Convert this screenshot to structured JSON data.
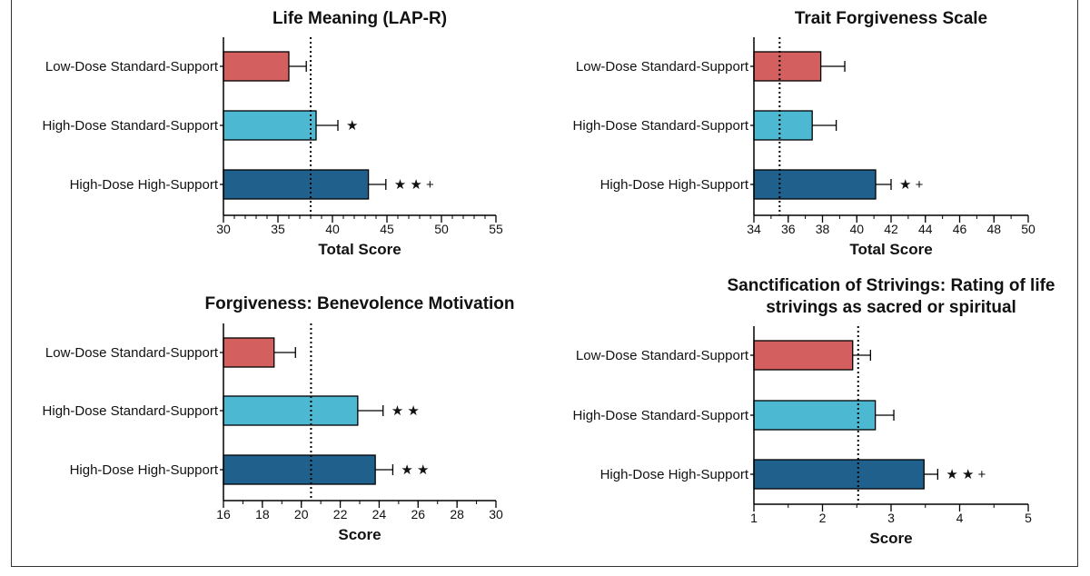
{
  "colors": {
    "low_dose_standard_support": "#d45f5f",
    "high_dose_standard_support": "#4db8d2",
    "high_dose_high_support": "#20608d",
    "axis": "#000000"
  },
  "chart_data": [
    {
      "type": "bar",
      "orientation": "horizontal",
      "title": [
        "Life Meaning (LAP-R)"
      ],
      "xlabel": "Total Score",
      "categories": [
        "Low-Dose Standard-Support",
        "High-Dose Standard-Support",
        "High-Dose High-Support"
      ],
      "values": [
        36,
        38.5,
        43.3
      ],
      "errors": [
        1.6,
        2.0,
        1.6
      ],
      "significance": [
        "",
        "★",
        "★ ★ +"
      ],
      "reference_line": 38,
      "xlim": [
        30,
        55
      ],
      "major_ticks": [
        30,
        35,
        40,
        45,
        50,
        55
      ],
      "minor_step": 1
    },
    {
      "type": "bar",
      "orientation": "horizontal",
      "title": [
        "Trait Forgiveness Scale"
      ],
      "xlabel": "Total Score",
      "categories": [
        "Low-Dose Standard-Support",
        "High-Dose Standard-Support",
        "High-Dose High-Support"
      ],
      "values": [
        37.9,
        37.4,
        41.1
      ],
      "errors": [
        1.4,
        1.4,
        0.9
      ],
      "significance": [
        "",
        "",
        "★ +"
      ],
      "reference_line": 35.5,
      "xlim": [
        34,
        50
      ],
      "major_ticks": [
        34,
        36,
        38,
        40,
        42,
        44,
        46,
        48,
        50
      ],
      "minor_step": 1
    },
    {
      "type": "bar",
      "orientation": "horizontal",
      "title": [
        "Forgiveness: Benevolence Motivation"
      ],
      "xlabel": "Score",
      "categories": [
        "Low-Dose Standard-Support",
        "High-Dose Standard-Support",
        "High-Dose High-Support"
      ],
      "values": [
        18.6,
        22.9,
        23.8
      ],
      "errors": [
        1.1,
        1.3,
        0.9
      ],
      "significance": [
        "",
        "★ ★",
        "★ ★"
      ],
      "reference_line": 20.5,
      "xlim": [
        16,
        30
      ],
      "major_ticks": [
        16,
        18,
        20,
        22,
        24,
        26,
        28,
        30
      ],
      "minor_step": 1
    },
    {
      "type": "bar",
      "orientation": "horizontal",
      "title": [
        "Sanctification of Strivings: Rating of life",
        "strivings as sacred or spiritual"
      ],
      "xlabel": "Score",
      "categories": [
        "Low-Dose Standard-Support",
        "High-Dose Standard-Support",
        "High-Dose High-Support"
      ],
      "values": [
        2.44,
        2.77,
        3.48
      ],
      "errors": [
        0.26,
        0.27,
        0.2
      ],
      "significance": [
        "",
        "",
        "★ ★ +"
      ],
      "reference_line": 2.52,
      "xlim": [
        1,
        5
      ],
      "major_ticks": [
        1,
        2,
        3,
        4,
        5
      ],
      "minor_step": 0.5
    }
  ]
}
